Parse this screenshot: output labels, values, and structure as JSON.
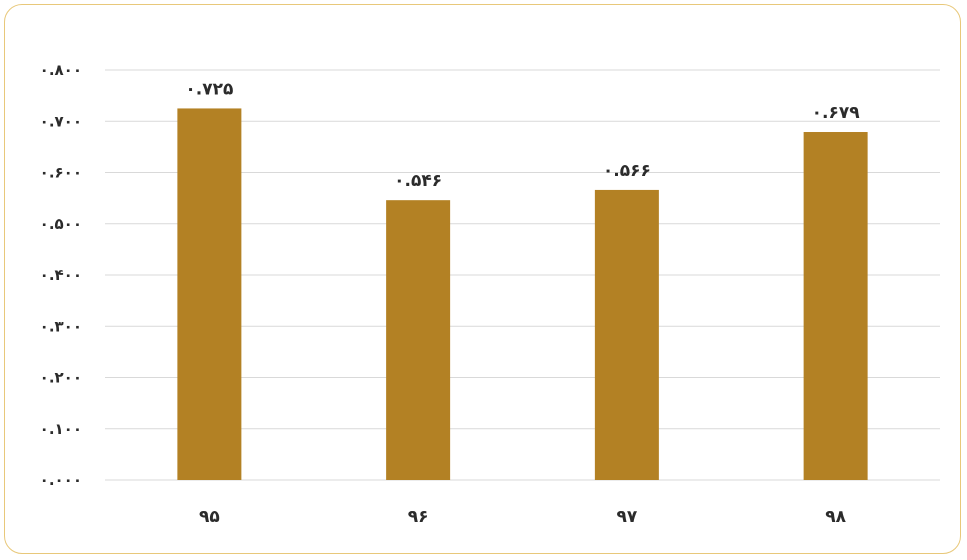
{
  "chart_data": {
    "type": "bar",
    "categories": [
      "۹۵",
      "۹۶",
      "۹۷",
      "۹۸"
    ],
    "values": [
      0.725,
      0.546,
      0.566,
      0.679
    ],
    "data_labels": [
      "۰.۷۲۵",
      "۰.۵۴۶",
      "۰.۵۶۶",
      "۰.۶۷۹"
    ],
    "ylim": [
      0,
      0.8
    ],
    "yticks": [
      0,
      0.1,
      0.2,
      0.3,
      0.4,
      0.5,
      0.6,
      0.7,
      0.8
    ],
    "ytick_labels": [
      "۰.۰۰۰",
      "۰.۱۰۰",
      "۰.۲۰۰",
      "۰.۳۰۰",
      "۰.۴۰۰",
      "۰.۵۰۰",
      "۰.۶۰۰",
      "۰.۷۰۰",
      "۰.۸۰۰"
    ],
    "grid": true,
    "bar_color": "#b38124",
    "grid_color": "#d9d9d9",
    "title": "",
    "xlabel": "",
    "ylabel": ""
  }
}
